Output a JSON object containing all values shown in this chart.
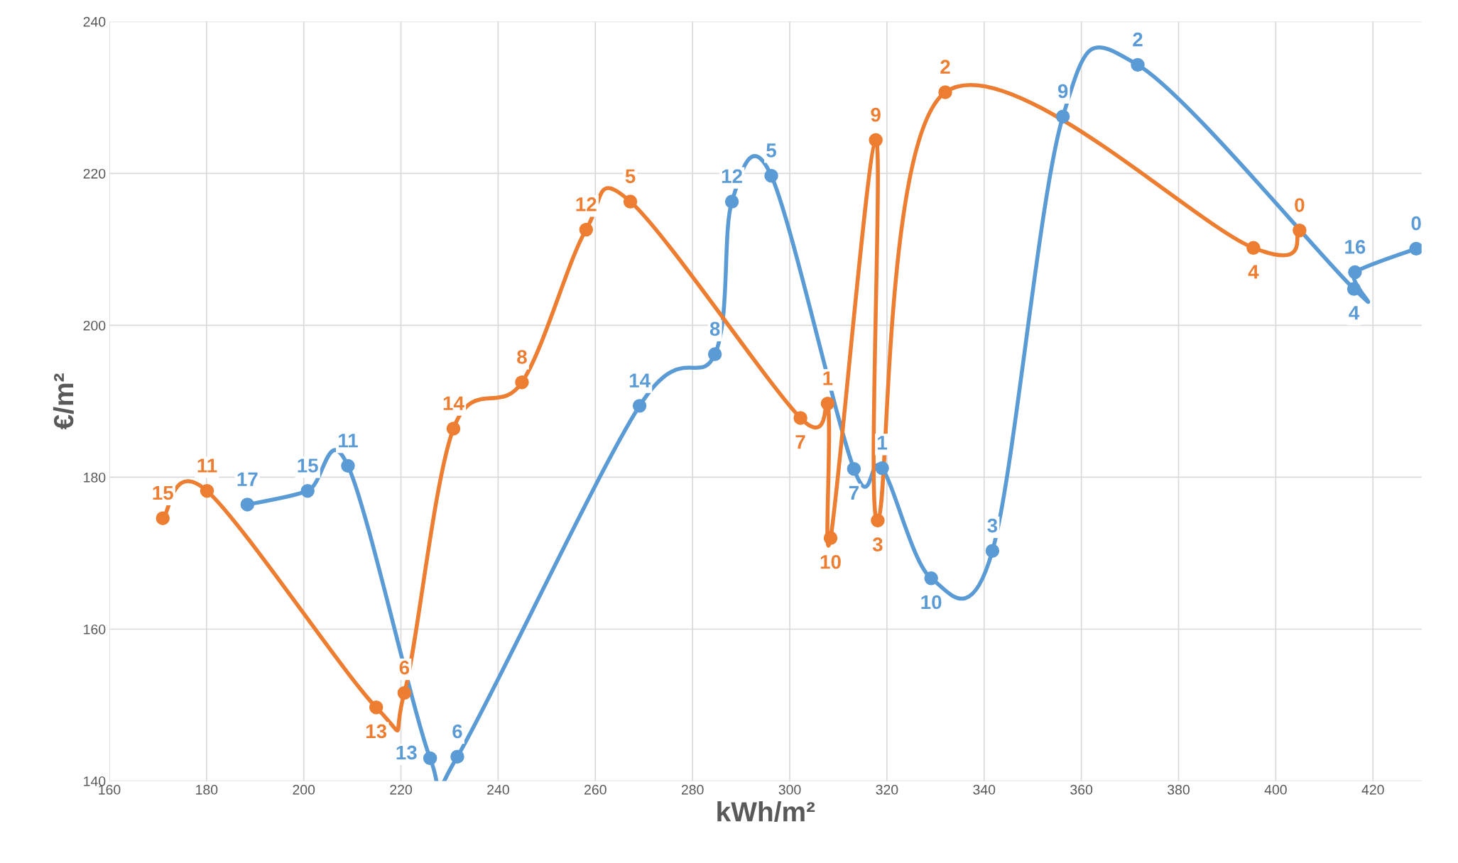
{
  "chart_data": {
    "type": "line",
    "xlabel": "kWh/m²",
    "ylabel": "€/m²",
    "xlim": [
      160,
      430
    ],
    "xticks": [
      160,
      180,
      200,
      220,
      240,
      260,
      280,
      300,
      320,
      340,
      360,
      380,
      400,
      420
    ],
    "ylim": [
      140,
      240
    ],
    "yticks": [
      140,
      160,
      180,
      200,
      220,
      240
    ],
    "grid": true,
    "marker": "circle",
    "line_style": "solid",
    "series": [
      {
        "color": "#5b9bd5",
        "x": [
          188.4,
          200.8,
          209.1,
          226.0,
          231.6,
          269.1,
          284.6,
          288.1,
          296.2,
          313.2,
          319.0,
          329.1,
          341.7,
          356.2,
          371.6,
          416.1,
          416.3,
          428.9
        ],
        "values": [
          176.4,
          178.2,
          181.5,
          143.0,
          143.2,
          189.4,
          196.2,
          216.3,
          219.7,
          181.1,
          181.2,
          166.7,
          170.3,
          227.5,
          234.3,
          204.8,
          207.0,
          210.1
        ]
      },
      {
        "color": "#ed7d31",
        "x": [
          171.0,
          180.1,
          214.9,
          220.7,
          230.8,
          244.9,
          258.1,
          267.2,
          302.2,
          307.8,
          308.4,
          317.7,
          318.1,
          332.0,
          395.4,
          404.9
        ],
        "values": [
          174.6,
          178.2,
          149.7,
          151.6,
          186.4,
          192.5,
          212.6,
          216.3,
          187.8,
          189.7,
          172.0,
          224.4,
          174.3,
          230.7,
          210.2,
          212.5
        ]
      }
    ],
    "annotations": [
      {
        "text": "17",
        "x": 188.4,
        "y": 176.4
      },
      {
        "text": "15",
        "x": 200.8,
        "y": 178.2
      },
      {
        "text": "11",
        "x": 209.1,
        "y": 181.5
      },
      {
        "text": "13",
        "x": 226.0,
        "y": 143.0
      },
      {
        "text": "6",
        "x": 231.6,
        "y": 143.2
      },
      {
        "text": "14",
        "x": 269.1,
        "y": 189.4
      },
      {
        "text": "8",
        "x": 284.6,
        "y": 196.2
      },
      {
        "text": "12",
        "x": 288.1,
        "y": 216.3
      },
      {
        "text": "5",
        "x": 296.2,
        "y": 219.7
      },
      {
        "text": "7",
        "x": 313.2,
        "y": 181.1
      },
      {
        "text": "1",
        "x": 319.0,
        "y": 181.2
      },
      {
        "text": "10",
        "x": 329.1,
        "y": 166.7
      },
      {
        "text": "3",
        "x": 341.7,
        "y": 170.3
      },
      {
        "text": "9",
        "x": 356.2,
        "y": 227.5
      },
      {
        "text": "2",
        "x": 371.6,
        "y": 234.3
      },
      {
        "text": "4",
        "x": 416.1,
        "y": 204.8
      },
      {
        "text": "16",
        "x": 416.3,
        "y": 207.0
      },
      {
        "text": "0",
        "x": 428.9,
        "y": 210.1
      },
      {
        "text": "15",
        "x": 171.0,
        "y": 174.6
      },
      {
        "text": "11",
        "x": 180.1,
        "y": 178.2
      },
      {
        "text": "13",
        "x": 214.9,
        "y": 149.7
      },
      {
        "text": "6",
        "x": 220.7,
        "y": 151.6
      },
      {
        "text": "14",
        "x": 230.8,
        "y": 186.4
      },
      {
        "text": "8",
        "x": 244.9,
        "y": 192.5
      },
      {
        "text": "12",
        "x": 258.1,
        "y": 212.6
      },
      {
        "text": "5",
        "x": 267.2,
        "y": 216.3
      },
      {
        "text": "7",
        "x": 302.2,
        "y": 187.8
      },
      {
        "text": "1",
        "x": 307.8,
        "y": 189.7
      },
      {
        "text": "10",
        "x": 308.4,
        "y": 172.0
      },
      {
        "text": "9",
        "x": 317.7,
        "y": 224.4
      },
      {
        "text": "3",
        "x": 318.1,
        "y": 174.3
      },
      {
        "text": "2",
        "x": 332.0,
        "y": 230.7
      },
      {
        "text": "4",
        "x": 395.4,
        "y": 210.2
      },
      {
        "text": "0",
        "x": 404.9,
        "y": 212.5
      }
    ]
  }
}
